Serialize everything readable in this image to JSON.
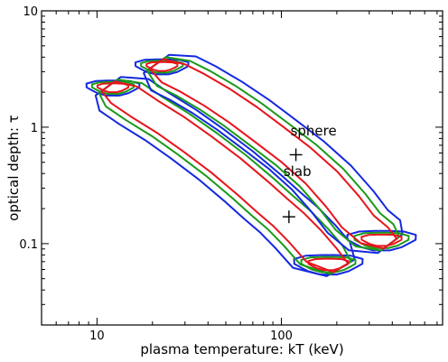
{
  "chart_data": {
    "type": "contour",
    "xlabel": "plasma temperature: kT (keV)",
    "ylabel": "optical depth: τ",
    "x_scale": "log",
    "y_scale": "log",
    "xlim": [
      5,
      750
    ],
    "ylim": [
      0.02,
      10
    ],
    "x_ticks": [
      {
        "value": 10,
        "label": "10"
      },
      {
        "value": 100,
        "label": "100"
      }
    ],
    "y_ticks": [
      {
        "value": 0.1,
        "label": "0.1"
      },
      {
        "value": 1,
        "label": "1"
      },
      {
        "value": 10,
        "label": "10"
      }
    ],
    "grid": false,
    "contour_levels": [
      {
        "level": "inner",
        "color": "#e8141c"
      },
      {
        "level": "middle",
        "color": "#1a9a1a"
      },
      {
        "level": "outer",
        "color": "#1528e0"
      }
    ],
    "regions": [
      {
        "name": "slab",
        "best_fit": {
          "kT": 110,
          "tau": 0.17
        },
        "ridge": [
          {
            "kT": 11.5,
            "tau": 2.25
          },
          {
            "kT": 14,
            "tau": 1.9
          },
          {
            "kT": 18,
            "tau": 1.45
          },
          {
            "kT": 25,
            "tau": 1.05
          },
          {
            "kT": 35,
            "tau": 0.72
          },
          {
            "kT": 50,
            "tau": 0.47
          },
          {
            "kT": 70,
            "tau": 0.3
          },
          {
            "kT": 90,
            "tau": 0.21
          },
          {
            "kT": 110,
            "tau": 0.16
          },
          {
            "kT": 135,
            "tau": 0.115
          },
          {
            "kT": 165,
            "tau": 0.08
          },
          {
            "kT": 210,
            "tau": 0.062
          }
        ],
        "half_width": [
          0.1,
          0.14,
          0.19
        ],
        "blobs": [
          {
            "kT": 12.2,
            "tau": 2.2,
            "size": 0.085
          },
          {
            "kT": 180,
            "tau": 0.067,
            "size": 0.11
          }
        ]
      },
      {
        "name": "sphere",
        "best_fit": {
          "kT": 120,
          "tau": 0.58
        },
        "ridge": [
          {
            "kT": 21,
            "tau": 3.5
          },
          {
            "kT": 26,
            "tau": 2.9
          },
          {
            "kT": 33,
            "tau": 2.4
          },
          {
            "kT": 45,
            "tau": 1.8
          },
          {
            "kT": 62,
            "tau": 1.28
          },
          {
            "kT": 85,
            "tau": 0.88
          },
          {
            "kT": 120,
            "tau": 0.58
          },
          {
            "kT": 165,
            "tau": 0.37
          },
          {
            "kT": 215,
            "tau": 0.23
          },
          {
            "kT": 260,
            "tau": 0.155
          },
          {
            "kT": 320,
            "tau": 0.118
          },
          {
            "kT": 390,
            "tau": 0.1
          }
        ],
        "half_width": [
          0.1,
          0.14,
          0.19
        ],
        "blobs": [
          {
            "kT": 22.5,
            "tau": 3.35,
            "size": 0.085
          },
          {
            "kT": 350,
            "tau": 0.108,
            "size": 0.11
          }
        ]
      }
    ],
    "annotations": [
      {
        "text": "sphere",
        "kT": 120,
        "tau": 0.85
      },
      {
        "text": "slab",
        "kT": 110,
        "tau": 0.38
      }
    ]
  }
}
